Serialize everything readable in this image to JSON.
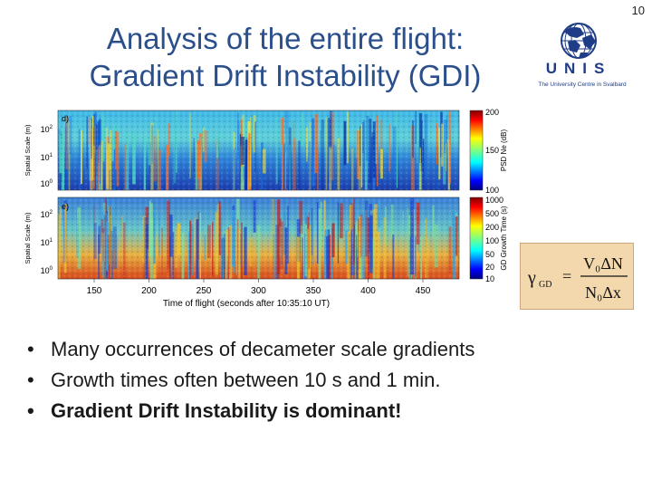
{
  "slide_number": "10",
  "title": {
    "line1": "Analysis of the entire flight:",
    "line2": "Gradient Drift Instability (GDI)"
  },
  "logo": {
    "name": "UNIS",
    "subtitle": "The University Centre in Svalbard",
    "icon": "globe-icon"
  },
  "figure": {
    "panels": [
      {
        "label": "d)",
        "ylabel": "Spatial Scale (m)",
        "yticks": [
          "10",
          "10",
          "10"
        ],
        "yticks_exp": [
          "2",
          "1",
          "0"
        ],
        "colorbar_label": "PSD Ne (dB)",
        "colorbar_ticks": [
          "200",
          "150",
          "100"
        ]
      },
      {
        "label": "e)",
        "ylabel": "Spatial Scale (m)",
        "yticks": [
          "10",
          "10",
          "10"
        ],
        "yticks_exp": [
          "2",
          "1",
          "0"
        ],
        "colorbar_label": "GD Growth Time (s)",
        "colorbar_ticks": [
          "1000",
          "500",
          "200",
          "100",
          "50",
          "20",
          "10"
        ]
      }
    ],
    "xticks": [
      "150",
      "200",
      "250",
      "300",
      "350",
      "400",
      "450"
    ],
    "xlabel": "Time of flight (seconds after 10:35:10 UT)"
  },
  "formula": {
    "gamma": "γ",
    "gamma_sub": "GD",
    "equals": "=",
    "numerator": "V₀ΔN",
    "denominator": "N₀Δx"
  },
  "bullets": [
    {
      "text": "Many occurrences of decameter scale gradients",
      "bold": false
    },
    {
      "text": "Growth times often between 10 s and 1 min.",
      "bold": false
    },
    {
      "text": "Gradient Drift Instability is dominant!",
      "bold": true
    }
  ],
  "colors": {
    "title": "#2a4f8a",
    "logo": "#1f3d87",
    "formula_bg": "#f4d8ad"
  }
}
